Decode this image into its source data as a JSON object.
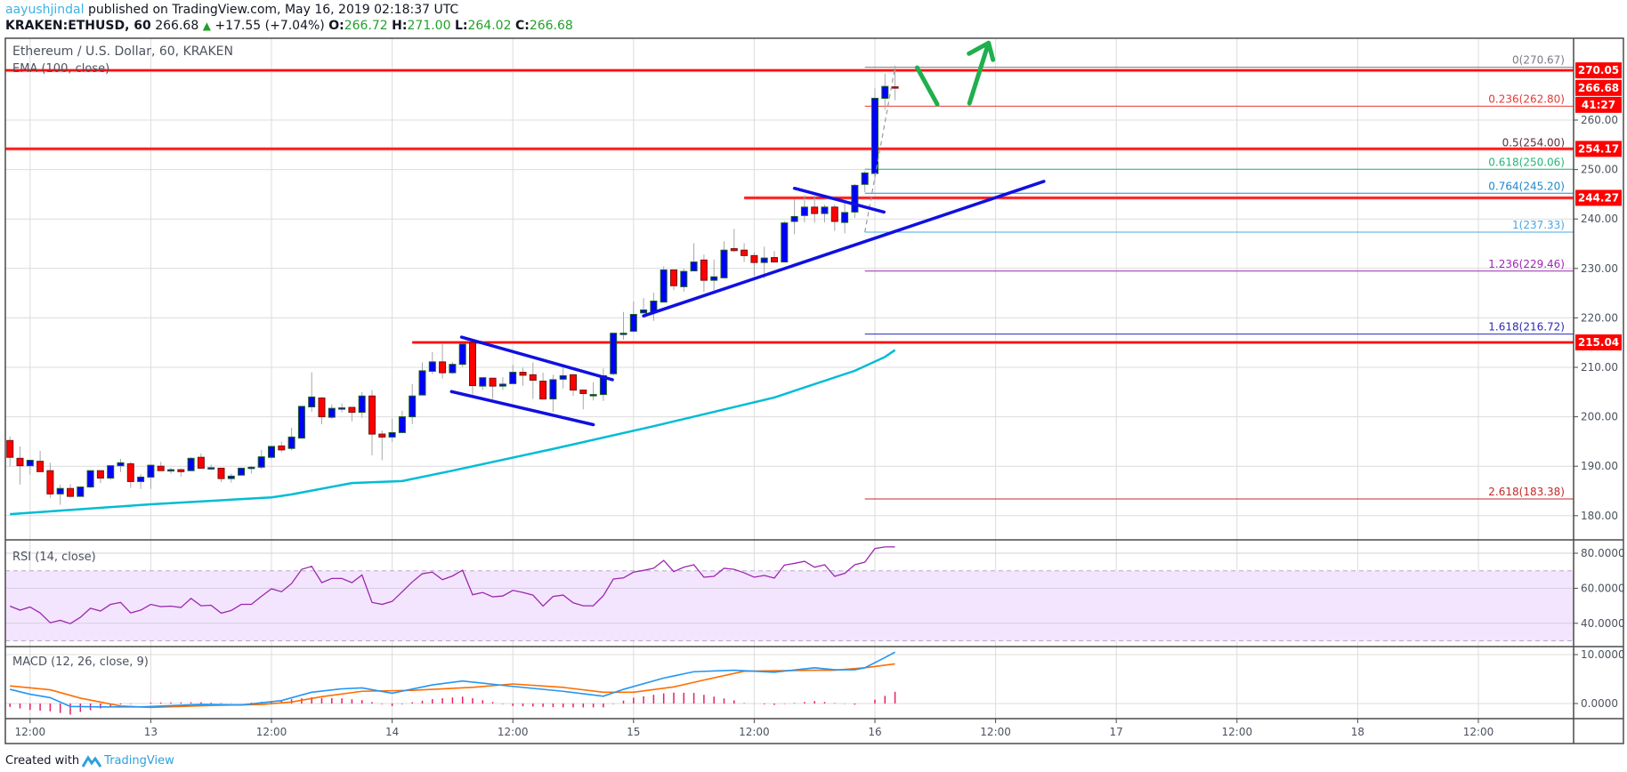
{
  "header": {
    "author": "aayushjindal",
    "published_text": "published on TradingView.com, May 16, 2019 02:18:37 UTC",
    "symbol": "KRAKEN:ETHUSD, 60",
    "last": "266.68",
    "change": "+17.55 (+7.04%)",
    "o_label": "O:",
    "o": "266.72",
    "h_label": "H:",
    "h": "271.00",
    "l_label": "L:",
    "l": "264.02",
    "c_label": "C:",
    "c": "266.68",
    "up_color": "#22a02a"
  },
  "footer": {
    "created_with": "Created with",
    "brand": "TradingView"
  },
  "chart_data": {
    "type": "candlestick",
    "title": "Ethereum / U.S. Dollar, 60, KRAKEN",
    "ema_label": "EMA (100, close)",
    "colors": {
      "up": "#0000ff",
      "down": "#ff0000",
      "ema": "#00bcd4",
      "trend": "#1010e0",
      "arrow": "#1faf4c",
      "level": "#ff0000"
    },
    "ylim": [
      173,
      275
    ],
    "y_ticks": [
      "180.00",
      "190.00",
      "200.00",
      "210.00",
      "220.00",
      "230.00",
      "240.00",
      "250.00",
      "260.00"
    ],
    "x_ticks": [
      "12:00",
      "13",
      "12:00",
      "14",
      "12:00",
      "15",
      "12:00",
      "16",
      "12:00",
      "17",
      "12:00",
      "18",
      "12:00"
    ],
    "x_tick_times": [
      "2019-05-12T12:00",
      "2019-05-13T00:00",
      "2019-05-13T12:00",
      "2019-05-14T00:00",
      "2019-05-14T12:00",
      "2019-05-15T00:00",
      "2019-05-15T12:00",
      "2019-05-16T00:00",
      "2019-05-16T12:00",
      "2019-05-17T00:00",
      "2019-05-17T12:00",
      "2019-05-18T00:00",
      "2019-05-18T12:00"
    ],
    "candles": [
      [
        "2019-05-12T10:00",
        195.2,
        196.0,
        190.0,
        191.8
      ],
      [
        "2019-05-12T11:00",
        191.6,
        194.0,
        186.3,
        190.1
      ],
      [
        "2019-05-12T12:00",
        190.1,
        191.2,
        188.3,
        191.2
      ],
      [
        "2019-05-12T13:00",
        191.0,
        193.1,
        188.9,
        188.9
      ],
      [
        "2019-05-12T14:00",
        189.1,
        190.7,
        183.6,
        184.4
      ],
      [
        "2019-05-12T15:00",
        184.4,
        186.3,
        182.2,
        185.5
      ],
      [
        "2019-05-12T16:00",
        185.5,
        186.4,
        183.7,
        183.9
      ],
      [
        "2019-05-12T17:00",
        183.9,
        185.8,
        183.9,
        185.8
      ],
      [
        "2019-05-12T18:00",
        185.8,
        189.1,
        185.6,
        189.1
      ],
      [
        "2019-05-12T19:00",
        189.1,
        189.1,
        186.6,
        187.6
      ],
      [
        "2019-05-12T20:00",
        187.6,
        190.1,
        187.2,
        190.1
      ],
      [
        "2019-05-12T21:00",
        190.1,
        191.5,
        188.8,
        190.7
      ],
      [
        "2019-05-12T22:00",
        190.5,
        190.9,
        185.6,
        186.9
      ],
      [
        "2019-05-12T23:00",
        186.9,
        188.4,
        185.4,
        187.8
      ],
      [
        "2019-05-13T00:00",
        187.8,
        190.2,
        185.4,
        190.2
      ],
      [
        "2019-05-13T01:00",
        190.0,
        190.9,
        189.1,
        189.1
      ],
      [
        "2019-05-13T02:00",
        189.3,
        189.7,
        188.5,
        189.3
      ],
      [
        "2019-05-13T03:00",
        189.3,
        189.5,
        187.9,
        188.9
      ],
      [
        "2019-05-13T04:00",
        189.1,
        191.8,
        189.1,
        191.6
      ],
      [
        "2019-05-13T05:00",
        191.8,
        192.6,
        189.6,
        189.6
      ],
      [
        "2019-05-13T06:00",
        189.6,
        190.3,
        189.2,
        189.7
      ],
      [
        "2019-05-13T07:00",
        189.6,
        189.6,
        186.8,
        187.5
      ],
      [
        "2019-05-13T08:00",
        187.5,
        188.5,
        186.7,
        188.0
      ],
      [
        "2019-05-13T09:00",
        188.2,
        189.6,
        188.2,
        189.6
      ],
      [
        "2019-05-13T10:00",
        189.6,
        190.0,
        188.5,
        189.8
      ],
      [
        "2019-05-13T11:00",
        189.8,
        193.3,
        189.4,
        191.9
      ],
      [
        "2019-05-13T12:00",
        191.8,
        194.1,
        191.4,
        194.0
      ],
      [
        "2019-05-13T13:00",
        194.1,
        195.0,
        192.8,
        193.3
      ],
      [
        "2019-05-13T14:00",
        193.6,
        197.8,
        193.2,
        195.9
      ],
      [
        "2019-05-13T15:00",
        195.7,
        202.1,
        195.5,
        202.1
      ],
      [
        "2019-05-13T16:00",
        202.0,
        209.0,
        201.0,
        204.0
      ],
      [
        "2019-05-13T17:00",
        203.8,
        204.0,
        198.5,
        200.0
      ],
      [
        "2019-05-13T18:00",
        199.9,
        202.5,
        199.6,
        201.7
      ],
      [
        "2019-05-13T19:00",
        201.8,
        202.7,
        200.9,
        201.8
      ],
      [
        "2019-05-13T20:00",
        201.9,
        201.9,
        199.1,
        200.9
      ],
      [
        "2019-05-13T21:00",
        200.9,
        205.0,
        199.8,
        204.2
      ],
      [
        "2019-05-13T22:00",
        204.2,
        205.4,
        192.2,
        196.5
      ],
      [
        "2019-05-13T23:00",
        196.5,
        197.2,
        191.2,
        195.9
      ],
      [
        "2019-05-14T00:00",
        195.9,
        199.6,
        194.9,
        196.8
      ],
      [
        "2019-05-14T01:00",
        196.8,
        201.2,
        196.8,
        200.0
      ],
      [
        "2019-05-14T02:00",
        200.0,
        206.6,
        198.5,
        204.2
      ],
      [
        "2019-05-14T03:00",
        204.4,
        211.0,
        204.4,
        209.3
      ],
      [
        "2019-05-14T04:00",
        209.2,
        213.1,
        208.6,
        211.1
      ],
      [
        "2019-05-14T05:00",
        211.1,
        214.7,
        207.7,
        208.9
      ],
      [
        "2019-05-14T06:00",
        208.9,
        211.1,
        208.7,
        210.6
      ],
      [
        "2019-05-14T07:00",
        210.6,
        214.7,
        210.0,
        214.7
      ],
      [
        "2019-05-14T08:00",
        215.0,
        215.0,
        204.5,
        206.3
      ],
      [
        "2019-05-14T09:00",
        206.2,
        207.9,
        205.4,
        207.9
      ],
      [
        "2019-05-14T10:00",
        207.8,
        207.8,
        203.6,
        206.2
      ],
      [
        "2019-05-14T11:00",
        206.2,
        208.0,
        205.4,
        206.6
      ],
      [
        "2019-05-14T12:00",
        206.7,
        210.5,
        206.7,
        209.0
      ],
      [
        "2019-05-14T13:00",
        209.0,
        209.9,
        206.3,
        208.4
      ],
      [
        "2019-05-14T14:00",
        208.5,
        211.0,
        203.6,
        207.4
      ],
      [
        "2019-05-14T15:00",
        207.2,
        208.9,
        203.6,
        203.6
      ],
      [
        "2019-05-14T16:00",
        203.6,
        208.5,
        201.0,
        207.5
      ],
      [
        "2019-05-14T17:00",
        207.6,
        210.0,
        205.7,
        208.3
      ],
      [
        "2019-05-14T18:00",
        208.5,
        208.5,
        204.2,
        205.4
      ],
      [
        "2019-05-14T19:00",
        205.4,
        205.4,
        201.5,
        204.7
      ],
      [
        "2019-05-14T20:00",
        204.5,
        207.0,
        203.3,
        204.5
      ],
      [
        "2019-05-14T21:00",
        204.5,
        209.8,
        203.2,
        208.3
      ],
      [
        "2019-05-14T22:00",
        208.7,
        216.9,
        208.4,
        216.9
      ],
      [
        "2019-05-14T23:00",
        216.9,
        221.2,
        215.6,
        216.9
      ],
      [
        "2019-05-15T00:00",
        217.3,
        223.3,
        217.1,
        220.7
      ],
      [
        "2019-05-15T01:00",
        221.0,
        224.0,
        221.0,
        221.6
      ],
      [
        "2019-05-15T02:00",
        221.2,
        225.1,
        219.4,
        223.4
      ],
      [
        "2019-05-15T03:00",
        223.2,
        230.4,
        223.1,
        229.7
      ],
      [
        "2019-05-15T04:00",
        229.7,
        229.7,
        225.6,
        226.5
      ],
      [
        "2019-05-15T05:00",
        226.3,
        230.0,
        225.3,
        229.4
      ],
      [
        "2019-05-15T06:00",
        229.5,
        235.1,
        229.5,
        231.3
      ],
      [
        "2019-05-15T07:00",
        231.7,
        232.8,
        225.2,
        227.6
      ],
      [
        "2019-05-15T08:00",
        227.6,
        231.8,
        225.6,
        228.3
      ],
      [
        "2019-05-15T09:00",
        228.1,
        235.5,
        228.0,
        233.7
      ],
      [
        "2019-05-15T10:00",
        234.0,
        238.0,
        233.3,
        233.6
      ],
      [
        "2019-05-15T11:00",
        233.7,
        235.1,
        231.3,
        232.6
      ],
      [
        "2019-05-15T12:00",
        232.6,
        233.3,
        228.5,
        231.2
      ],
      [
        "2019-05-15T13:00",
        231.2,
        234.4,
        228.0,
        232.1
      ],
      [
        "2019-05-15T14:00",
        232.2,
        233.5,
        231.3,
        231.3
      ],
      [
        "2019-05-15T15:00",
        231.3,
        239.6,
        231.3,
        239.2
      ],
      [
        "2019-05-15T16:00",
        239.5,
        244.0,
        236.9,
        240.5
      ],
      [
        "2019-05-15T17:00",
        240.7,
        244.8,
        239.3,
        242.4
      ],
      [
        "2019-05-15T18:00",
        242.4,
        244.7,
        239.3,
        241.1
      ],
      [
        "2019-05-15T19:00",
        241.1,
        242.9,
        239.3,
        242.4
      ],
      [
        "2019-05-15T20:00",
        242.4,
        242.9,
        237.6,
        239.5
      ],
      [
        "2019-05-15T21:00",
        239.3,
        243.2,
        237.1,
        241.3
      ],
      [
        "2019-05-15T22:00",
        241.4,
        247.1,
        240.2,
        246.8
      ],
      [
        "2019-05-15T23:00",
        247.0,
        249.7,
        245.4,
        249.3
      ],
      [
        "2019-05-16T00:00",
        249.2,
        266.4,
        247.8,
        264.4
      ],
      [
        "2019-05-16T01:00",
        264.4,
        269.4,
        262.1,
        266.8
      ],
      [
        "2019-05-16T02:00",
        266.72,
        271.0,
        264.02,
        266.68
      ]
    ],
    "ema": [
      [
        "2019-05-12T10:00",
        180.3
      ],
      [
        "2019-05-13T00:00",
        182.3
      ],
      [
        "2019-05-13T12:00",
        183.7
      ],
      [
        "2019-05-13T14:00",
        184.3
      ],
      [
        "2019-05-13T20:00",
        186.6
      ],
      [
        "2019-05-14T01:00",
        187.0
      ],
      [
        "2019-05-14T06:00",
        189.1
      ],
      [
        "2019-05-14T16:00",
        193.5
      ],
      [
        "2019-05-15T02:00",
        198.1
      ],
      [
        "2019-05-15T14:00",
        203.9
      ],
      [
        "2019-05-15T22:00",
        209.3
      ],
      [
        "2019-05-16T01:00",
        212.1
      ],
      [
        "2019-05-16T02:00",
        213.5
      ]
    ],
    "levels": [
      {
        "price": 270.05,
        "label": "270.05",
        "from": "2019-05-12T09:00"
      },
      {
        "price": 254.17,
        "label": "254.17",
        "from": "2019-05-12T09:00"
      },
      {
        "price": 244.27,
        "label": "244.27",
        "from": "2019-05-15T11:00"
      },
      {
        "price": 215.04,
        "label": "215.04",
        "from": "2019-05-14T02:00"
      }
    ],
    "last_price_label": "266.68",
    "countdown": "41:27",
    "fib": {
      "from": "2019-05-15T23:00",
      "levels": [
        {
          "label": "0(270.67)",
          "price": 270.67,
          "color": "#787b86"
        },
        {
          "label": "0.236(262.80)",
          "price": 262.8,
          "color": "#e53935"
        },
        {
          "label": "0.5(254.00)",
          "price": 254.0,
          "color": "#5d2e3a",
          "line": "#111111"
        },
        {
          "label": "0.618(250.06)",
          "price": 250.06,
          "color": "#26b47c"
        },
        {
          "label": "0.764(245.20)",
          "price": 245.2,
          "color": "#2188c9"
        },
        {
          "label": "1(237.33)",
          "price": 237.33,
          "color": "#4aa8e0"
        },
        {
          "label": "1.236(229.46)",
          "price": 229.46,
          "color": "#9c27b0"
        },
        {
          "label": "1.618(216.72)",
          "price": 216.72,
          "color": "#2a2ab8"
        },
        {
          "label": "2.618(183.38)",
          "price": 183.38,
          "color": "#c62828"
        }
      ],
      "trend": [
        [
          "2019-05-15T23:00",
          237.33
        ],
        [
          "2019-05-16T02:00",
          270.67
        ]
      ]
    },
    "trendlines": [
      {
        "name": "flag-upper",
        "points": [
          [
            "2019-05-14T06:54",
            216.1
          ],
          [
            "2019-05-14T21:54",
            207.5
          ]
        ]
      },
      {
        "name": "flag-lower",
        "points": [
          [
            "2019-05-14T05:54",
            205.1
          ],
          [
            "2019-05-14T20:00",
            198.4
          ]
        ]
      },
      {
        "name": "rising-support",
        "points": [
          [
            "2019-05-15T01:00",
            220.4
          ],
          [
            "2019-05-16T16:48",
            247.6
          ]
        ]
      },
      {
        "name": "short-resistance",
        "points": [
          [
            "2019-05-15T16:00",
            246.2
          ],
          [
            "2019-05-16T00:54",
            241.4
          ]
        ]
      }
    ],
    "arrows": [
      {
        "points": [
          [
            "2019-05-16T04:12",
            270.6
          ],
          [
            "2019-05-16T06:12",
            263.2
          ]
        ]
      },
      {
        "points": [
          [
            "2019-05-16T09:24",
            263.4
          ],
          [
            "2019-05-16T11:18",
            275.6
          ]
        ],
        "head": true
      }
    ],
    "rsi": {
      "label": "RSI (14, close)",
      "ticks": [
        "80.0000",
        "60.0000",
        "40.0000"
      ],
      "band": [
        30,
        70
      ],
      "color": "#9c27b0",
      "band_color": "#f3e5fd",
      "values": [
        49.8,
        47.5,
        49.3,
        45.9,
        40.3,
        41.7,
        39.8,
        43.4,
        48.6,
        47.0,
        50.8,
        51.9,
        45.9,
        47.5,
        50.8,
        49.5,
        49.8,
        49.0,
        54.2,
        50.0,
        50.3,
        45.8,
        47.3,
        50.8,
        50.8,
        55.4,
        59.7,
        58.0,
        62.7,
        70.8,
        72.5,
        63.2,
        65.6,
        65.6,
        63.2,
        67.6,
        51.9,
        50.8,
        52.5,
        58.0,
        63.6,
        68.3,
        69.2,
        64.9,
        67.0,
        70.3,
        56.3,
        57.6,
        55.1,
        55.6,
        58.8,
        57.6,
        56.1,
        49.8,
        55.3,
        56.1,
        51.7,
        50.0,
        50.0,
        55.8,
        65.3,
        65.9,
        69.2,
        70.2,
        71.4,
        75.9,
        69.5,
        72.0,
        73.4,
        66.3,
        66.8,
        71.4,
        70.8,
        68.8,
        66.3,
        67.3,
        65.8,
        73.2,
        74.2,
        75.4,
        72.0,
        73.4,
        66.8,
        68.5,
        73.4,
        74.9,
        82.7,
        83.6,
        83.6
      ]
    },
    "macd": {
      "label": "MACD (12, 26, close, 9)",
      "ticks": [
        "10.0000",
        "0.0000"
      ],
      "colors": {
        "macd": "#2196f3",
        "signal": "#ff6d00",
        "hist": "#e91e63"
      },
      "macd": [
        [
          "2019-05-12T10:00",
          2.9
        ],
        [
          "2019-05-12T12:00",
          1.9
        ],
        [
          "2019-05-12T14:00",
          1.2
        ],
        [
          "2019-05-12T16:00",
          -0.6
        ],
        [
          "2019-05-12T19:00",
          -0.7
        ],
        [
          "2019-05-12T23:00",
          -0.7
        ],
        [
          "2019-05-13T05:00",
          -0.2
        ],
        [
          "2019-05-13T09:00",
          -0.3
        ],
        [
          "2019-05-13T13:00",
          0.6
        ],
        [
          "2019-05-13T16:00",
          2.3
        ],
        [
          "2019-05-13T19:00",
          3.0
        ],
        [
          "2019-05-13T21:00",
          3.2
        ],
        [
          "2019-05-14T00:00",
          2.1
        ],
        [
          "2019-05-14T04:00",
          3.8
        ],
        [
          "2019-05-14T07:00",
          4.6
        ],
        [
          "2019-05-14T12:00",
          3.5
        ],
        [
          "2019-05-14T17:00",
          2.5
        ],
        [
          "2019-05-14T21:00",
          1.5
        ],
        [
          "2019-05-14T23:00",
          2.9
        ],
        [
          "2019-05-15T03:00",
          5.2
        ],
        [
          "2019-05-15T06:00",
          6.5
        ],
        [
          "2019-05-15T10:00",
          6.8
        ],
        [
          "2019-05-15T14:00",
          6.4
        ],
        [
          "2019-05-15T18:00",
          7.3
        ],
        [
          "2019-05-15T20:00",
          6.9
        ],
        [
          "2019-05-15T22:00",
          6.9
        ],
        [
          "2019-05-15T23:00",
          7.3
        ],
        [
          "2019-05-16T01:00",
          9.4
        ],
        [
          "2019-05-16T02:00",
          10.5
        ]
      ],
      "signal": [
        [
          "2019-05-12T10:00",
          3.6
        ],
        [
          "2019-05-12T14:00",
          2.8
        ],
        [
          "2019-05-12T17:00",
          1.1
        ],
        [
          "2019-05-12T21:00",
          -0.5
        ],
        [
          "2019-05-13T00:00",
          -0.8
        ],
        [
          "2019-05-13T06:00",
          -0.4
        ],
        [
          "2019-05-13T11:00",
          -0.2
        ],
        [
          "2019-05-13T14:00",
          0.3
        ],
        [
          "2019-05-13T17:00",
          1.4
        ],
        [
          "2019-05-13T21:00",
          2.5
        ],
        [
          "2019-05-14T02:00",
          2.7
        ],
        [
          "2019-05-14T08:00",
          3.3
        ],
        [
          "2019-05-14T12:00",
          4.0
        ],
        [
          "2019-05-14T17:00",
          3.3
        ],
        [
          "2019-05-14T21:00",
          2.3
        ],
        [
          "2019-05-15T00:00",
          2.3
        ],
        [
          "2019-05-15T04:00",
          3.4
        ],
        [
          "2019-05-15T07:00",
          4.8
        ],
        [
          "2019-05-15T11:00",
          6.6
        ],
        [
          "2019-05-15T18:00",
          6.8
        ],
        [
          "2019-05-15T20:00",
          6.8
        ],
        [
          "2019-05-15T23:00",
          7.3
        ],
        [
          "2019-05-16T02:00",
          8.1
        ]
      ]
    }
  }
}
